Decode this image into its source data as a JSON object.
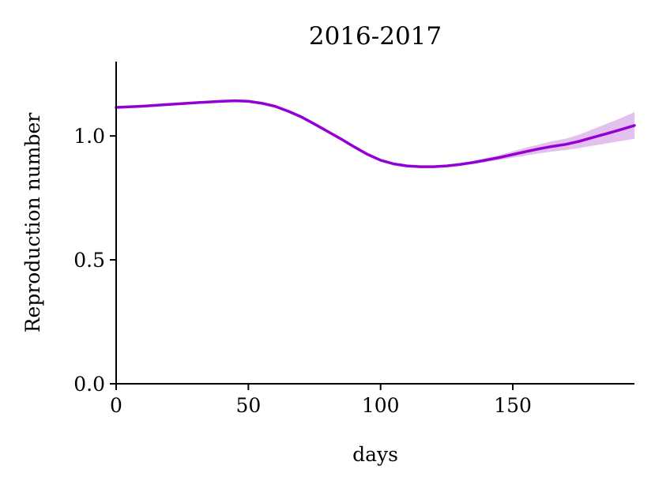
{
  "chart_data": {
    "type": "line",
    "title": "2016-2017",
    "xlabel": "days",
    "ylabel": "Reproduction number",
    "xlim": [
      0,
      196
    ],
    "ylim": [
      0,
      1.3
    ],
    "x_ticks": [
      0,
      50,
      100,
      150
    ],
    "x_tick_labels": [
      "0",
      "50",
      "100",
      "150"
    ],
    "y_ticks": [
      0.0,
      0.5,
      1.0
    ],
    "y_tick_labels": [
      "0.0",
      "0.5",
      "1.0"
    ],
    "grid": false,
    "line_color": "#9400d3",
    "band_color": "#e3c1ee",
    "series": [
      {
        "x": [
          0,
          10,
          20,
          30,
          40,
          45,
          50,
          55,
          60,
          65,
          70,
          75,
          80,
          85,
          90,
          95,
          100,
          105,
          110,
          115,
          120,
          125,
          130,
          135,
          140,
          145,
          150,
          155,
          160,
          165,
          170,
          175,
          180,
          185,
          190,
          196
        ],
        "y": [
          1.115,
          1.12,
          1.127,
          1.134,
          1.14,
          1.142,
          1.14,
          1.132,
          1.12,
          1.1,
          1.077,
          1.048,
          1.018,
          0.988,
          0.956,
          0.926,
          0.902,
          0.887,
          0.879,
          0.876,
          0.876,
          0.879,
          0.885,
          0.893,
          0.903,
          0.913,
          0.925,
          0.937,
          0.948,
          0.958,
          0.966,
          0.978,
          0.993,
          1.008,
          1.023,
          1.042
        ],
        "lower": [
          1.11,
          1.116,
          1.123,
          1.13,
          1.136,
          1.138,
          1.136,
          1.128,
          1.116,
          1.096,
          1.073,
          1.044,
          1.014,
          0.984,
          0.952,
          0.922,
          0.898,
          0.883,
          0.875,
          0.872,
          0.872,
          0.875,
          0.88,
          0.887,
          0.895,
          0.903,
          0.912,
          0.921,
          0.93,
          0.937,
          0.943,
          0.951,
          0.96,
          0.969,
          0.978,
          0.988
        ],
        "upper": [
          1.12,
          1.124,
          1.131,
          1.138,
          1.144,
          1.146,
          1.144,
          1.136,
          1.124,
          1.104,
          1.081,
          1.052,
          1.022,
          0.992,
          0.96,
          0.93,
          0.906,
          0.891,
          0.883,
          0.88,
          0.88,
          0.883,
          0.89,
          0.899,
          0.911,
          0.923,
          0.938,
          0.953,
          0.966,
          0.979,
          0.989,
          1.005,
          1.026,
          1.047,
          1.068,
          1.096
        ]
      }
    ]
  }
}
